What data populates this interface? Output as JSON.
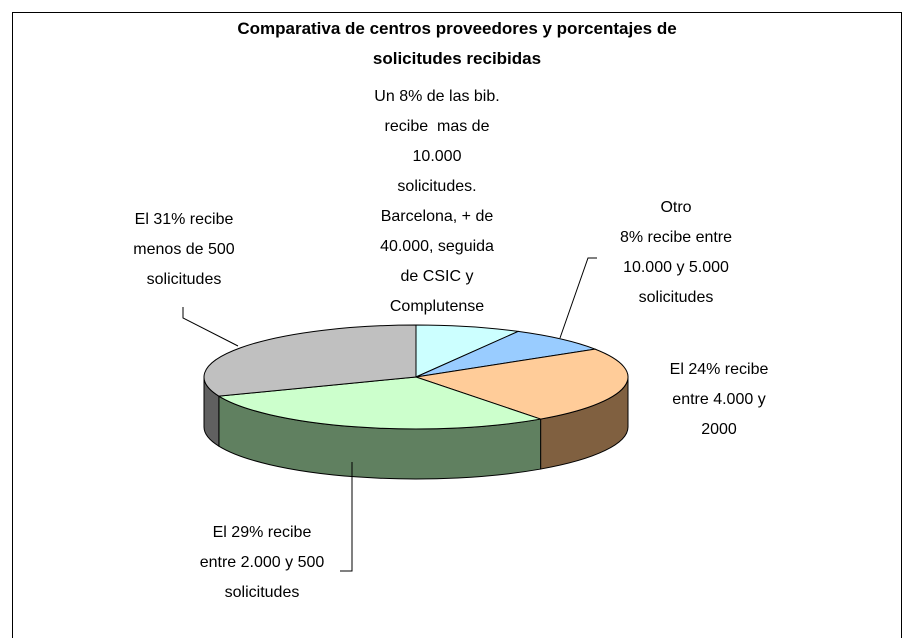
{
  "chart_data": {
    "type": "pie",
    "title": "Comparativa de centros proveedores y porcentajes de\nsolicitudes recibidas",
    "categories": [
      "Un 8% de las bib.\nrecibe  mas de\n10.000\nsolicitudes.\nBarcelona, + de\n40.000, seguida\nde CSIC y\nComplutense",
      "Otro\n8% recibe entre\n10.000 y 5.000\nsolicitudes",
      "El 24% recibe\nentre 4.000 y\n2000",
      "El 29% recibe\nentre 2.000 y 500\nsolicitudes",
      "El 31% recibe\nmenos de 500\nsolicitudes"
    ],
    "values": [
      8,
      8,
      24,
      29,
      31
    ],
    "colors": [
      "#ccffff",
      "#99ccff",
      "#ffcc99",
      "#ccffcc",
      "#c0c0c0"
    ],
    "side_colors": [
      "#66807f",
      "#4c6680",
      "#806040",
      "#608060",
      "#606060"
    ]
  }
}
